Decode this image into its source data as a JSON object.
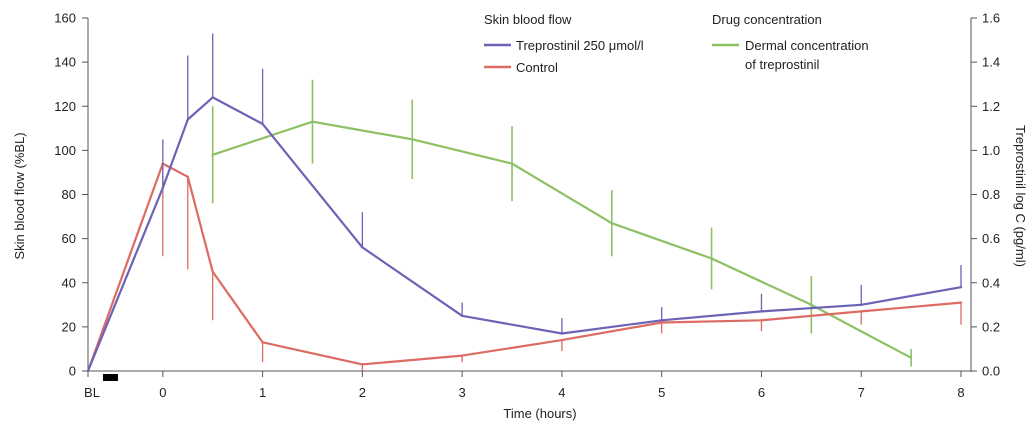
{
  "chart_data": {
    "type": "line",
    "xlabel": "Time (hours)",
    "ylabel_left": "Skin blood flow (%BL)",
    "ylabel_right": "Treprostinil log C (pg/ml)",
    "x_ticks": [
      {
        "label": "BL",
        "x": -0.75
      },
      {
        "label": "0",
        "x": 0
      },
      {
        "label": "1",
        "x": 1
      },
      {
        "label": "2",
        "x": 2
      },
      {
        "label": "3",
        "x": 3
      },
      {
        "label": "4",
        "x": 4
      },
      {
        "label": "5",
        "x": 5
      },
      {
        "label": "6",
        "x": 6
      },
      {
        "label": "7",
        "x": 7
      },
      {
        "label": "8",
        "x": 8
      }
    ],
    "xlim": [
      -0.75,
      8
    ],
    "ylim_left": [
      0,
      160
    ],
    "y_ticks_left": [
      "0",
      "20",
      "40",
      "60",
      "80",
      "100",
      "120",
      "140",
      "160"
    ],
    "ylim_right": [
      0,
      1.6
    ],
    "y_ticks_right": [
      "0.0",
      "0.2",
      "0.4",
      "0.6",
      "0.8",
      "1.0",
      "1.2",
      "1.4",
      "1.6"
    ],
    "legend_groups": [
      {
        "title": "Skin blood flow",
        "placement": "top-center"
      },
      {
        "title": "Drug concentration",
        "placement": "top-right"
      }
    ],
    "series": [
      {
        "name": "Treprostinil 250 μmol/l",
        "group": "Skin blood flow",
        "axis": "left",
        "color": "#6b63b5",
        "x": [
          -0.75,
          0,
          0.25,
          0.5,
          1,
          2,
          3,
          4,
          5,
          6,
          7,
          8
        ],
        "y": [
          0,
          83,
          114,
          124,
          112,
          56,
          25,
          17,
          23,
          27,
          30,
          38
        ],
        "err": [
          0,
          22,
          29,
          29,
          25,
          16,
          6,
          7,
          6,
          8,
          9,
          10
        ]
      },
      {
        "name": "Control",
        "group": "Skin blood flow",
        "axis": "left",
        "color": "#dd6b63",
        "x": [
          -0.75,
          0,
          0.25,
          0.5,
          1,
          2,
          3,
          4,
          5,
          6,
          7,
          8
        ],
        "y": [
          0,
          94,
          88,
          45,
          13,
          3,
          7,
          14,
          22,
          23,
          27,
          31
        ],
        "err": [
          0,
          42,
          42,
          22,
          9,
          3,
          3,
          5,
          5,
          5,
          6,
          10
        ]
      },
      {
        "name": "Dermal concentration of treprostinil",
        "group": "Drug concentration",
        "axis": "right",
        "color": "#8cc063",
        "x": [
          0.5,
          1.5,
          2.5,
          3.5,
          4.5,
          5.5,
          6.5,
          7.5
        ],
        "y": [
          0.98,
          1.13,
          1.05,
          0.94,
          0.67,
          0.51,
          0.3,
          0.06
        ],
        "err": [
          0.22,
          0.19,
          0.18,
          0.17,
          0.15,
          0.14,
          0.13,
          0.04
        ]
      }
    ],
    "baseline_bar": {
      "x_start": -0.6,
      "x_end": -0.45
    }
  }
}
